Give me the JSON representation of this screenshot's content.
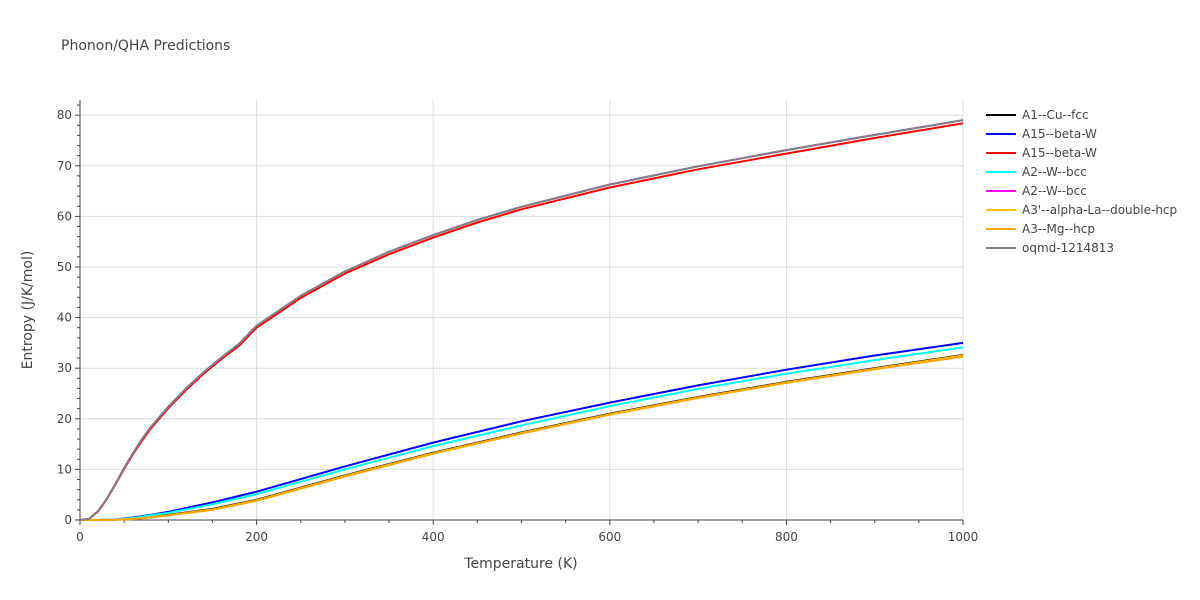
{
  "chart_data": {
    "type": "line",
    "title": "Phonon/QHA Predictions",
    "xlabel": "Temperature (K)",
    "ylabel": "Entropy (J/K/mol)",
    "xlim": [
      0,
      1000
    ],
    "ylim": [
      0,
      83
    ],
    "xticks": [
      0,
      200,
      400,
      600,
      800,
      1000
    ],
    "yticks": [
      0,
      10,
      20,
      30,
      40,
      50,
      60,
      70,
      80
    ],
    "grid": true,
    "legend_position": "right",
    "series": [
      {
        "name": "A1--Cu--fcc",
        "color": "#000000",
        "x": [
          0,
          10,
          20,
          40,
          60,
          80,
          100,
          150,
          200,
          300,
          400,
          500,
          600,
          700,
          800,
          900,
          1000
        ],
        "y": [
          0,
          0,
          0,
          0.05,
          0.25,
          0.6,
          1.0,
          2.2,
          4.0,
          8.8,
          13.3,
          17.3,
          21.0,
          24.3,
          27.3,
          30.0,
          32.6
        ]
      },
      {
        "name": "A15--beta-W",
        "color": "#0000ff",
        "x": [
          0,
          10,
          20,
          40,
          60,
          80,
          100,
          150,
          200,
          300,
          400,
          500,
          600,
          700,
          800,
          900,
          1000
        ],
        "y": [
          0,
          0,
          0,
          0.1,
          0.5,
          1.0,
          1.6,
          3.5,
          5.6,
          10.6,
          15.3,
          19.5,
          23.2,
          26.6,
          29.7,
          32.5,
          35.0
        ]
      },
      {
        "name": "A15--beta-W",
        "color": "#ff0000",
        "x": [
          0,
          10,
          20,
          30,
          40,
          50,
          60,
          70,
          80,
          100,
          120,
          140,
          160,
          180,
          200,
          250,
          300,
          350,
          400,
          450,
          500,
          600,
          700,
          800,
          900,
          1000
        ],
        "y": [
          0,
          0.2,
          1.6,
          4.0,
          7.0,
          10.1,
          13.0,
          15.6,
          18.0,
          22.1,
          25.7,
          28.9,
          31.8,
          34.4,
          38.0,
          43.9,
          48.7,
          52.5,
          55.8,
          58.8,
          61.4,
          65.7,
          69.3,
          72.4,
          75.5,
          78.4
        ]
      },
      {
        "name": "A2--W--bcc",
        "color": "#00ffff",
        "x": [
          0,
          10,
          20,
          40,
          60,
          80,
          100,
          150,
          200,
          300,
          400,
          500,
          600,
          700,
          800,
          900,
          1000
        ],
        "y": [
          0,
          0,
          0,
          0.1,
          0.4,
          0.9,
          1.4,
          3.1,
          5.1,
          10.0,
          14.6,
          18.7,
          22.5,
          25.9,
          28.9,
          31.6,
          34.1
        ]
      },
      {
        "name": "A2--W--bcc",
        "color": "#ff00ff",
        "x": [
          0,
          10,
          20,
          30,
          40,
          50,
          60,
          70,
          80,
          100,
          120,
          140,
          160,
          180,
          200,
          250,
          300,
          350,
          400,
          450,
          500,
          600,
          700,
          800,
          900,
          1000
        ],
        "y": [
          0,
          0.2,
          1.7,
          4.1,
          7.1,
          10.3,
          13.2,
          15.9,
          18.3,
          22.4,
          26.0,
          29.2,
          32.1,
          34.8,
          38.4,
          44.3,
          49.1,
          53.0,
          56.3,
          59.3,
          61.9,
          66.3,
          69.9,
          73.1,
          76.1,
          79.0
        ]
      },
      {
        "name": "A3'--alpha-La--double-hcp",
        "color": "#ffc000",
        "x": [
          0,
          10,
          20,
          40,
          60,
          80,
          100,
          150,
          200,
          300,
          400,
          500,
          600,
          700,
          800,
          900,
          1000
        ],
        "y": [
          0,
          0,
          0,
          0.05,
          0.2,
          0.55,
          0.95,
          2.1,
          3.9,
          8.7,
          13.2,
          17.2,
          20.9,
          24.2,
          27.2,
          29.9,
          32.5
        ]
      },
      {
        "name": "A3--Mg--hcp",
        "color": "#ffa500",
        "x": [
          0,
          10,
          20,
          40,
          60,
          80,
          100,
          150,
          200,
          300,
          400,
          500,
          600,
          700,
          800,
          900,
          1000
        ],
        "y": [
          0,
          0,
          0,
          0.05,
          0.2,
          0.5,
          0.9,
          2.0,
          3.8,
          8.6,
          13.1,
          17.1,
          20.8,
          24.1,
          27.1,
          29.8,
          32.3
        ]
      },
      {
        "name": "oqmd-1214813",
        "color": "#808080",
        "x": [
          0,
          10,
          20,
          30,
          40,
          50,
          60,
          70,
          80,
          100,
          120,
          140,
          160,
          180,
          200,
          250,
          300,
          350,
          400,
          450,
          500,
          600,
          700,
          800,
          900,
          1000
        ],
        "y": [
          0,
          0.2,
          1.7,
          4.1,
          7.1,
          10.3,
          13.2,
          15.9,
          18.3,
          22.4,
          26.0,
          29.2,
          32.1,
          34.8,
          38.4,
          44.3,
          49.1,
          53.0,
          56.3,
          59.3,
          61.9,
          66.3,
          69.9,
          73.1,
          76.1,
          79.0
        ]
      }
    ]
  }
}
